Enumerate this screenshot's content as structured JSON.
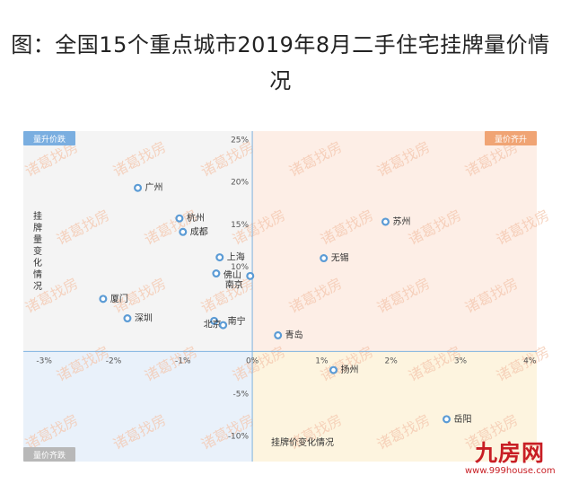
{
  "title": {
    "line1": "图：全国15个重点城市2019年8月二手住宅挂牌量价情",
    "line2": "况"
  },
  "colors": {
    "q1": "#fdeee6",
    "q2": "#f4f4f4",
    "q3": "#e9f1fa",
    "q4": "#fdf4df",
    "axis": "#7fb3e0",
    "point": "#5b9bd5",
    "tick": "#555555",
    "label": "#333333",
    "watermark": "#f4c7ae",
    "badge_q1": "#f0a474",
    "badge_q2": "#7aaee0",
    "badge_q3": "#b8b8b8"
  },
  "quadrant_labels": {
    "q2": "量升价跌",
    "q1": "量价齐升",
    "q3": "量价齐跌"
  },
  "watermark_text": "诸葛找房",
  "logo": {
    "brand": "九房网",
    "url": "www.999house.com"
  },
  "chart_data": {
    "type": "scatter",
    "xlabel": "挂牌价变化情况",
    "ylabel": "挂牌量变化情况",
    "xlim": [
      -3.3,
      4.1
    ],
    "ylim": [
      -13,
      26
    ],
    "x_ticks": [
      {
        "value": -3,
        "label": "-3%"
      },
      {
        "value": -2,
        "label": "-2%"
      },
      {
        "value": -1,
        "label": "-1%"
      },
      {
        "value": 0,
        "label": "0%"
      },
      {
        "value": 1,
        "label": "1%"
      },
      {
        "value": 2,
        "label": "2%"
      },
      {
        "value": 3,
        "label": "3%"
      },
      {
        "value": 4,
        "label": "4%"
      }
    ],
    "y_ticks": [
      {
        "value": 25,
        "label": "25%"
      },
      {
        "value": 20,
        "label": "20%"
      },
      {
        "value": 15,
        "label": "15%"
      },
      {
        "value": 10,
        "label": "10%"
      },
      {
        "value": -5,
        "label": "-5%"
      },
      {
        "value": -10,
        "label": "-10%"
      }
    ],
    "points": [
      {
        "name": "广州",
        "x": -1.65,
        "y": 19.3
      },
      {
        "name": "杭州",
        "x": -1.05,
        "y": 15.7
      },
      {
        "name": "成都",
        "x": -1.0,
        "y": 14.1
      },
      {
        "name": "苏州",
        "x": 1.92,
        "y": 15.3
      },
      {
        "name": "无锡",
        "x": 1.03,
        "y": 11.0
      },
      {
        "name": "上海",
        "x": -0.47,
        "y": 11.1
      },
      {
        "name": "佛山",
        "x": -0.52,
        "y": 9.2
      },
      {
        "name": "南京",
        "x": -0.03,
        "y": 8.9
      },
      {
        "name": "厦门",
        "x": -2.15,
        "y": 6.2
      },
      {
        "name": "深圳",
        "x": -1.8,
        "y": 3.9
      },
      {
        "name": "北京",
        "x": -0.55,
        "y": 3.6
      },
      {
        "name": "南宁",
        "x": -0.42,
        "y": 3.1
      },
      {
        "name": "青岛",
        "x": 0.37,
        "y": 1.9
      },
      {
        "name": "扬州",
        "x": 1.17,
        "y": -2.2
      },
      {
        "name": "岳阳",
        "x": 2.8,
        "y": -8.0
      }
    ]
  }
}
